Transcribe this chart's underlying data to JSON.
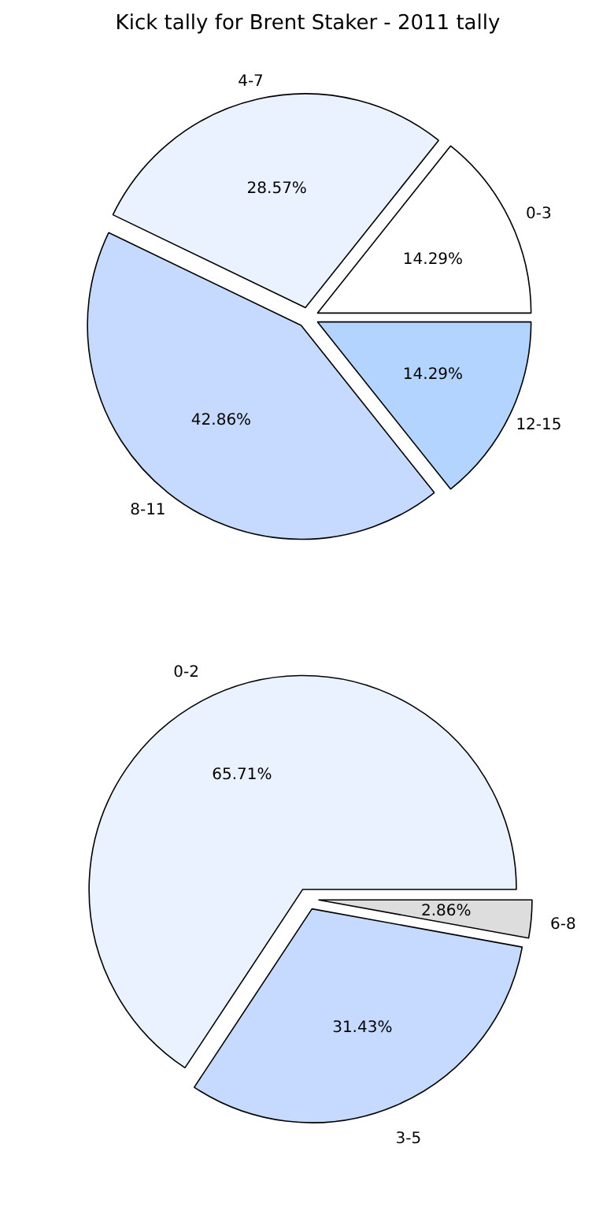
{
  "chart_data": [
    {
      "type": "pie",
      "title": "Kick tally for Brent Staker - 2011 tally",
      "categories": [
        "0-3",
        "4-7",
        "8-11",
        "12-15"
      ],
      "values": [
        14.29,
        28.57,
        42.86,
        14.29
      ],
      "value_labels": [
        "14.29%",
        "28.57%",
        "42.86%",
        "14.29%"
      ],
      "colors": [
        "#ffffff",
        "#eaf2ff",
        "#c6d9ff",
        "#b3d4ff"
      ]
    },
    {
      "type": "pie",
      "categories": [
        "0-2",
        "3-5",
        "6-8"
      ],
      "values": [
        65.71,
        31.43,
        2.86
      ],
      "value_labels": [
        "65.71%",
        "31.43%",
        "2.86%"
      ],
      "colors": [
        "#eaf2ff",
        "#c6d9ff",
        "#dddddd"
      ]
    }
  ]
}
